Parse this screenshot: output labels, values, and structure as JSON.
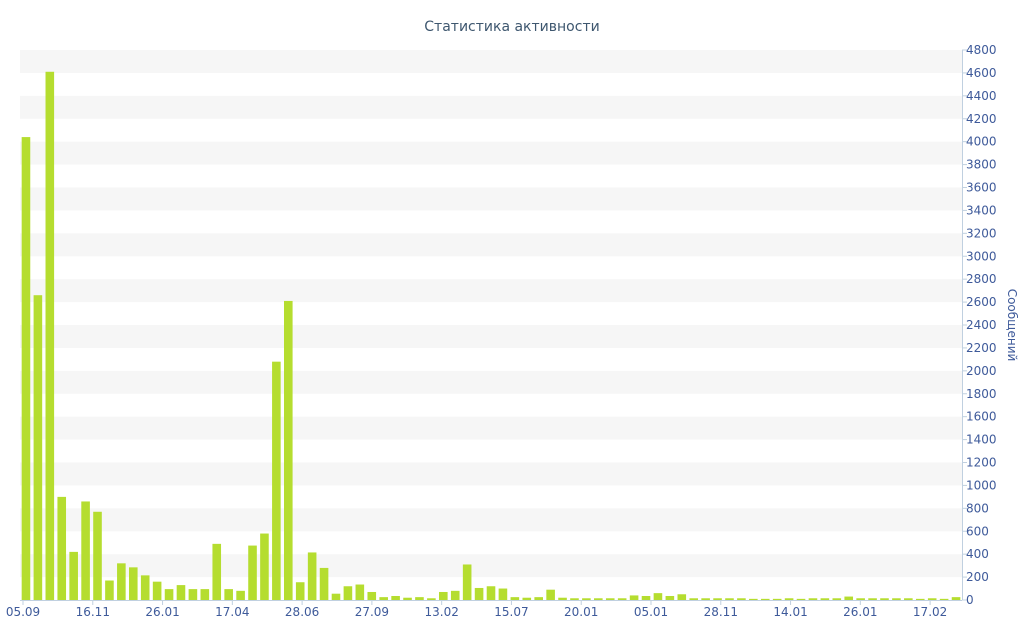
{
  "chart_data": {
    "type": "bar",
    "title": "Статистика активности",
    "xlabel": "",
    "ylabel": "Сообщений",
    "ylim": [
      0,
      4800
    ],
    "y_ticks": [
      0,
      200,
      400,
      600,
      800,
      1000,
      1200,
      1400,
      1600,
      1800,
      2000,
      2200,
      2400,
      2600,
      2800,
      3000,
      3200,
      3400,
      3600,
      3800,
      4000,
      4200,
      4400,
      4600,
      4800
    ],
    "x_tick_labels": [
      "05.09",
      "16.11",
      "26.01",
      "17.04",
      "28.06",
      "27.09",
      "13.02",
      "15.07",
      "20.01",
      "05.01",
      "28.11",
      "14.01",
      "26.01",
      "17.02"
    ],
    "y_axis_side": "right",
    "grid": "horizontal alternating bands",
    "colors": {
      "bar": "#b5dd2f",
      "band": "#f6f6f6",
      "axis_text": "#3e5a9a",
      "title": "#3e576f"
    },
    "values": [
      4040,
      2660,
      4610,
      900,
      420,
      860,
      770,
      170,
      320,
      285,
      215,
      160,
      95,
      130,
      95,
      95,
      490,
      95,
      80,
      475,
      580,
      2080,
      2610,
      155,
      415,
      280,
      55,
      120,
      135,
      70,
      25,
      35,
      20,
      25,
      15,
      70,
      80,
      310,
      105,
      120,
      100,
      25,
      20,
      25,
      90,
      20,
      15,
      15,
      15,
      15,
      15,
      40,
      35,
      60,
      35,
      50,
      15,
      15,
      15,
      15,
      15,
      10,
      10,
      10,
      15,
      10,
      15,
      15,
      15,
      30,
      15,
      15,
      15,
      15,
      15,
      10,
      15,
      10,
      25
    ]
  }
}
